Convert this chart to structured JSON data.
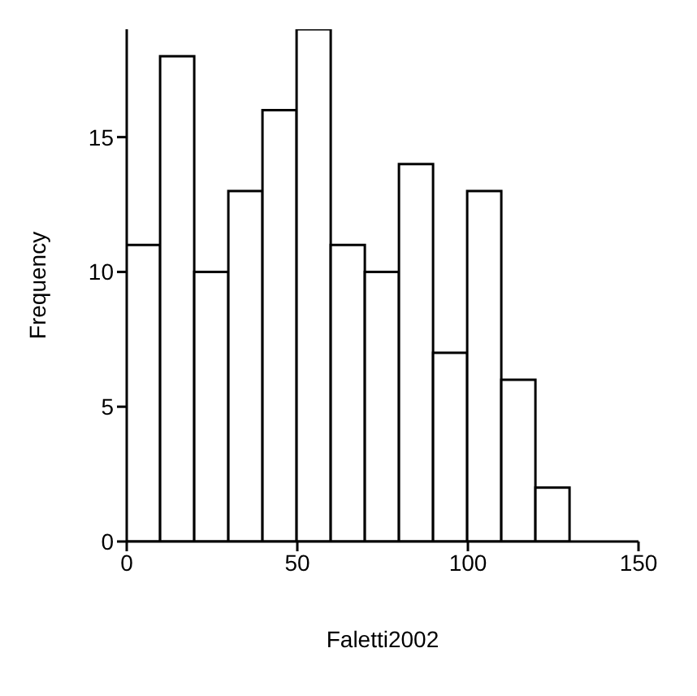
{
  "chart_data": {
    "type": "histogram",
    "xlabel": "Faletti2002",
    "ylabel": "Frequency",
    "bins": [
      0,
      10,
      20,
      30,
      40,
      50,
      60,
      70,
      80,
      90,
      100,
      110,
      120,
      130
    ],
    "values": [
      11,
      18,
      10,
      13,
      16,
      19,
      11,
      10,
      14,
      7,
      13,
      6,
      2
    ],
    "color": "#ffffff",
    "xlim": [
      0,
      150
    ],
    "xticks": [
      0,
      50,
      100,
      150
    ],
    "ylim": [
      0,
      19
    ],
    "yticks": [
      0,
      5,
      10,
      15
    ],
    "grid": false
  }
}
